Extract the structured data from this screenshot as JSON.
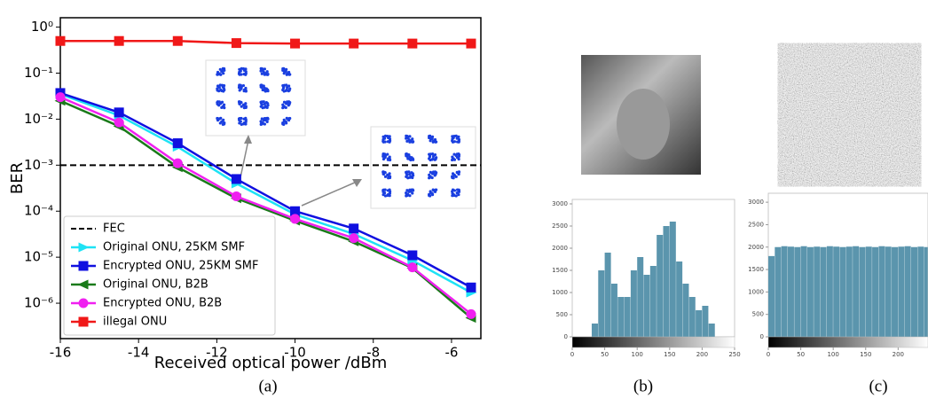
{
  "chart_data": [
    {
      "type": "line",
      "xlabel": "Received optical power /dBm",
      "ylabel": "BER",
      "caption": "(a)",
      "log_y": true,
      "legend": "lower left",
      "xlim": [
        -16,
        -5.25
      ],
      "ylim": [
        1.7e-07,
        1.6
      ],
      "xticks": [
        -16,
        -14,
        -12,
        -10,
        -8,
        -6
      ],
      "yticks": [
        {
          "value": 1e-06,
          "label": "10⁻⁶"
        },
        {
          "value": 1e-05,
          "label": "10⁻⁵"
        },
        {
          "value": 0.0001,
          "label": "10⁻⁴"
        },
        {
          "value": 0.001,
          "label": "10⁻³"
        },
        {
          "value": 0.01,
          "label": "10⁻²"
        },
        {
          "value": 0.1,
          "label": "10⁻¹"
        },
        {
          "value": 1,
          "label": "10⁰"
        }
      ],
      "reference_lines": [
        {
          "name": "FEC",
          "value": 0.001,
          "color": "#000000"
        }
      ],
      "x": [
        -16,
        -14.5,
        -13,
        -11.5,
        -10,
        -8.5,
        -7,
        -5.5
      ],
      "series": [
        {
          "name": "Original ONU, 25KM SMF",
          "color": "#1ee3f5",
          "marker": "triangle-right",
          "values": [
            0.035,
            0.012,
            0.0025,
            0.0004,
            8.5e-05,
            3.2e-05,
            8.5e-06,
            1.7e-06
          ]
        },
        {
          "name": "Encrypted ONU, 25KM SMF",
          "color": "#1010e0",
          "marker": "square",
          "values": [
            0.037,
            0.014,
            0.003,
            0.0005,
            0.0001,
            4.2e-05,
            1.1e-05,
            2.2e-06
          ]
        },
        {
          "name": "Original ONU, B2B",
          "color": "#1a7a1a",
          "marker": "triangle-left",
          "values": [
            0.025,
            0.007,
            0.0009,
            0.00019,
            6.2e-05,
            2.2e-05,
            5.8e-06,
            4.8e-07
          ]
        },
        {
          "name": "Encrypted ONU, B2B",
          "color": "#f020f0",
          "marker": "circle",
          "values": [
            0.03,
            0.0085,
            0.0011,
            0.00021,
            6.8e-05,
            2.6e-05,
            6e-06,
            5.8e-07
          ]
        },
        {
          "name": "illegal ONU",
          "color": "#f01818",
          "marker": "square",
          "values": [
            0.5,
            0.5,
            0.5,
            0.45,
            0.44,
            0.44,
            0.44,
            0.44
          ]
        }
      ]
    },
    {
      "type": "histogram",
      "caption": "(b)",
      "color": "#5b95ad",
      "xlim": [
        0,
        250
      ],
      "ylim": [
        0,
        3100
      ],
      "xticks": [
        0,
        50,
        100,
        150,
        200,
        250
      ],
      "yticks": [
        0,
        500,
        1000,
        1500,
        2000,
        2500,
        3000
      ],
      "bins": [
        0,
        10,
        20,
        30,
        40,
        50,
        60,
        70,
        80,
        90,
        100,
        110,
        120,
        130,
        140,
        150,
        160,
        170,
        180,
        190,
        200,
        210,
        220,
        230,
        240,
        250
      ],
      "counts": [
        0,
        0,
        0,
        300,
        1500,
        1900,
        1200,
        900,
        900,
        1500,
        1800,
        1400,
        1600,
        2300,
        2500,
        2600,
        1700,
        1200,
        900,
        600,
        700,
        300,
        0,
        0,
        0
      ]
    },
    {
      "type": "histogram",
      "caption": "(c)",
      "color": "#5b95ad",
      "xlim": [
        0,
        246
      ],
      "ylim": [
        0,
        3200
      ],
      "xticks": [
        0,
        50,
        100,
        150,
        200
      ],
      "yticks": [
        0,
        500,
        1000,
        1500,
        2000,
        2500,
        3000
      ],
      "bins": [
        0,
        10,
        20,
        30,
        40,
        50,
        60,
        70,
        80,
        90,
        100,
        110,
        120,
        130,
        140,
        150,
        160,
        170,
        180,
        190,
        200,
        210,
        220,
        230,
        240,
        246
      ],
      "counts": [
        1800,
        2000,
        2020,
        2010,
        2000,
        2020,
        2000,
        2010,
        2000,
        2020,
        2010,
        2000,
        2010,
        2020,
        2000,
        2010,
        2000,
        2020,
        2010,
        2000,
        2010,
        2020,
        2000,
        2010,
        2000
      ]
    }
  ]
}
